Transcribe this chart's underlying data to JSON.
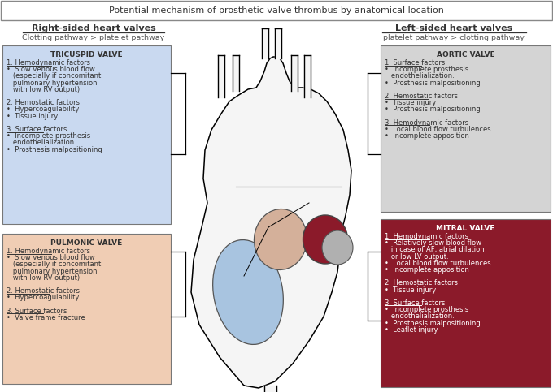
{
  "title": "Potential mechanism of prosthetic valve thrombus by anatomical location",
  "left_header": "Right-sided heart valves",
  "left_subheader": "Clotting pathway > platelet pathway",
  "right_header": "Left-sided heart valves",
  "right_subheader": "platelet pathway > clotting pathway",
  "tricuspid_title": "TRICUSPID VALVE",
  "tricuspid_color": "#c9d9f0",
  "tricuspid_text_lines": [
    [
      "1. Hemodynamic factors",
      true
    ],
    [
      "•  Slow venous blood flow",
      false
    ],
    [
      "   (especially if concomitant",
      false
    ],
    [
      "   pulmonary hypertension",
      false
    ],
    [
      "   with low RV output).",
      false
    ],
    [
      "",
      false
    ],
    [
      "2. Hemostatic factors",
      true
    ],
    [
      "•  Hypercoagulability",
      false
    ],
    [
      "•  Tissue injury",
      false
    ],
    [
      "",
      false
    ],
    [
      "3. Surface factors",
      true
    ],
    [
      "•  Incomplete prosthesis",
      false
    ],
    [
      "   endothelialization.",
      false
    ],
    [
      "•  Prosthesis malpositioning",
      false
    ]
  ],
  "pulmonic_title": "PULMONIC VALVE",
  "pulmonic_color": "#f0cdb4",
  "pulmonic_text_lines": [
    [
      "1. Hemodynamic factors",
      true
    ],
    [
      "•  Slow venous blood flow",
      false
    ],
    [
      "   (especially if concomitant",
      false
    ],
    [
      "   pulmonary hypertension",
      false
    ],
    [
      "   with low RV output).",
      false
    ],
    [
      "",
      false
    ],
    [
      "2. Hemostatic factors",
      true
    ],
    [
      "•  Hypercoagulability",
      false
    ],
    [
      "",
      false
    ],
    [
      "3. Surface factors",
      true
    ],
    [
      "•  Valve frame fracture",
      false
    ]
  ],
  "aortic_title": "AORTIC VALVE",
  "aortic_color": "#d4d4d4",
  "aortic_text_lines": [
    [
      "1. Surface factors",
      true
    ],
    [
      "•  Incomplete prosthesis",
      false
    ],
    [
      "   endothelialization.",
      false
    ],
    [
      "•  Prosthesis malpositioning",
      false
    ],
    [
      "",
      false
    ],
    [
      "2. Hemostatic factors",
      true
    ],
    [
      "•  Tissue injury",
      false
    ],
    [
      "•  Prosthesis malpositioning",
      false
    ],
    [
      "",
      false
    ],
    [
      "3. Hemodynamic factors",
      true
    ],
    [
      "•  Local blood flow turbulences",
      false
    ],
    [
      "•  Incomplete apposition",
      false
    ]
  ],
  "mitral_title": "MITRAL VALVE",
  "mitral_color": "#8b1a2a",
  "mitral_text_color": "#ffffff",
  "mitral_text_lines": [
    [
      "1. Hemodynamic factors",
      true
    ],
    [
      "•  Relatively slow blood flow",
      false
    ],
    [
      "   in case of AF, atrial dilation",
      false
    ],
    [
      "   or low LV output.",
      false
    ],
    [
      "•  Local blood flow turbulences",
      false
    ],
    [
      "•  Incomplete apposition",
      false
    ],
    [
      "",
      false
    ],
    [
      "2. Hemostatic factors",
      true
    ],
    [
      "•  Tissue injury",
      false
    ],
    [
      "",
      false
    ],
    [
      "3. Surface factors",
      true
    ],
    [
      "•  Incomplete prosthesis",
      false
    ],
    [
      "   endothelialization.",
      false
    ],
    [
      "•  Prosthesis malpositioning",
      false
    ],
    [
      "•  Leaflet injury",
      false
    ]
  ],
  "bg_color": "#ffffff",
  "border_color": "#555555"
}
